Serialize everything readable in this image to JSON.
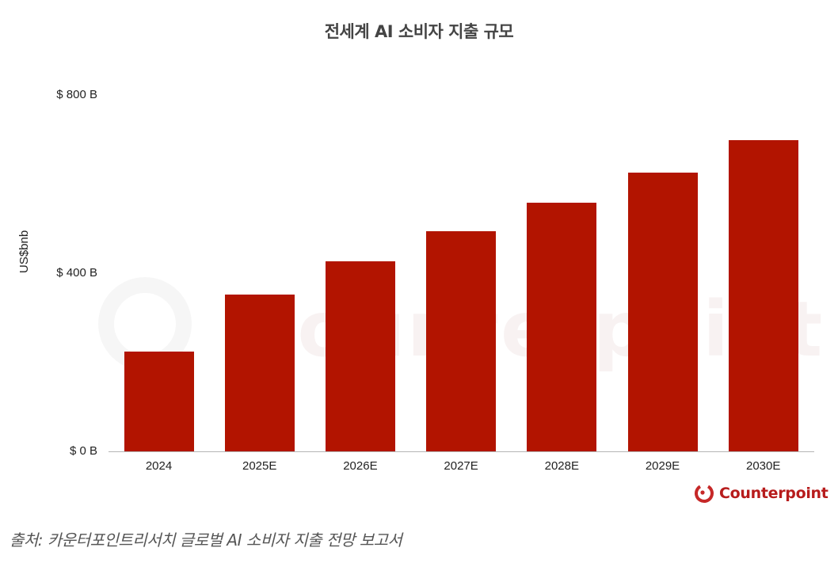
{
  "chart_data": {
    "type": "bar",
    "title": "전세계 AI 소비자 지출 규모",
    "xlabel": "",
    "ylabel": "US$bnb",
    "categories": [
      "2024",
      "2025E",
      "2026E",
      "2027E",
      "2028E",
      "2029E",
      "2030E"
    ],
    "values": [
      224,
      352,
      427,
      494,
      558,
      626,
      699
    ],
    "unit": "US$ billion",
    "ylim": [
      0,
      800
    ],
    "yticks": [
      "$ 0 B",
      "$ 400 B",
      "$ 800 B"
    ],
    "grid": false,
    "legend": null,
    "bar_color": "#b21400"
  },
  "title": "전세계 AI 소비자 지출 규모",
  "yaxis": {
    "label": "US$bnb",
    "ticks": [
      {
        "label": "$ 800 B",
        "value": 800
      },
      {
        "label": "$ 400 B",
        "value": 400
      },
      {
        "label": "$ 0 B",
        "value": 0
      }
    ]
  },
  "xaxis": {
    "ticks": [
      "2024",
      "2025E",
      "2026E",
      "2027E",
      "2028E",
      "2029E",
      "2030E"
    ]
  },
  "watermark": "Counterpoint",
  "logo": {
    "text": "Counterpoint",
    "color": "#b71c1c"
  },
  "source": "출처: 카운터포인트리서치 글로벌 AI 소비자 지출 전망 보고서"
}
